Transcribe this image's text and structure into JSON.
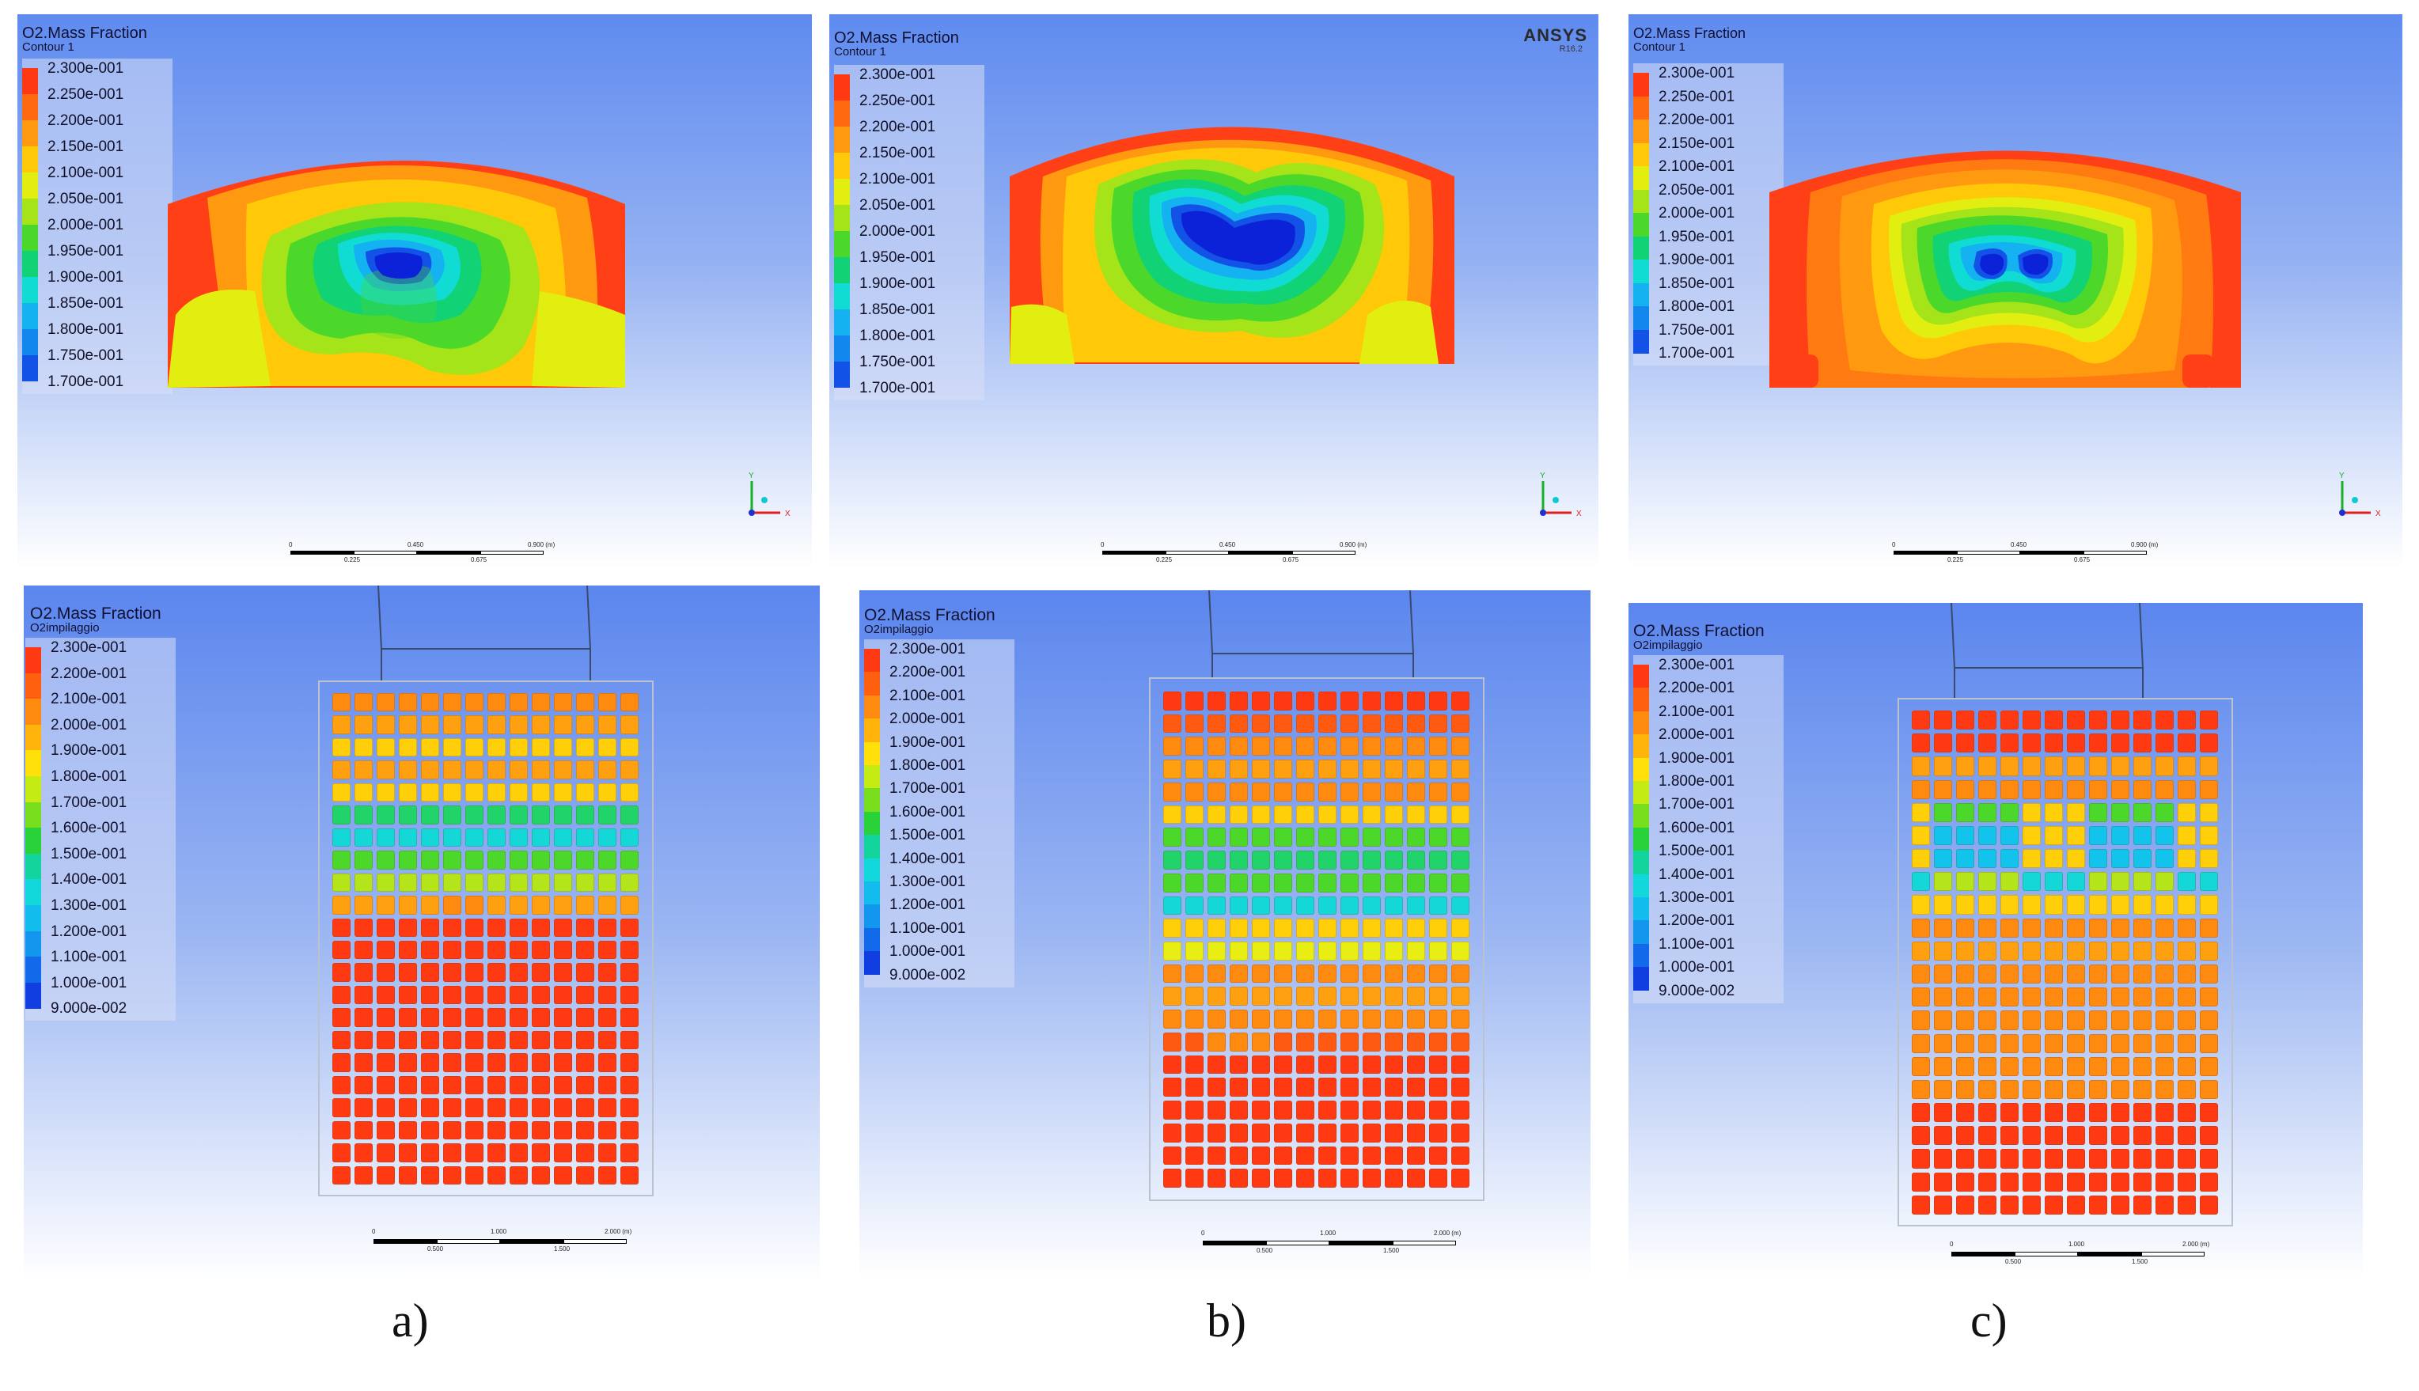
{
  "figure": {
    "top_row": [
      {
        "id": "a",
        "legend_title": "O2.Mass Fraction",
        "legend_subtitle": "Contour 1",
        "legend_values": [
          "2.300e-001",
          "2.250e-001",
          "2.200e-001",
          "2.150e-001",
          "2.100e-001",
          "2.050e-001",
          "2.000e-001",
          "1.950e-001",
          "1.900e-001",
          "1.850e-001",
          "1.800e-001",
          "1.750e-001",
          "1.700e-001"
        ],
        "scale_labels_top": [
          "0",
          "0.450",
          "0.900 (m)"
        ],
        "scale_labels_bottom": [
          "0.225",
          "0.675"
        ],
        "axis_labels": {
          "y": "Y",
          "x": "X"
        }
      },
      {
        "id": "b",
        "legend_title": "O2.Mass Fraction",
        "legend_subtitle": "Contour 1",
        "legend_values": [
          "2.300e-001",
          "2.250e-001",
          "2.200e-001",
          "2.150e-001",
          "2.100e-001",
          "2.050e-001",
          "2.000e-001",
          "1.950e-001",
          "1.900e-001",
          "1.850e-001",
          "1.800e-001",
          "1.750e-001",
          "1.700e-001"
        ],
        "scale_labels_top": [
          "0",
          "0.450",
          "0.900 (m)"
        ],
        "scale_labels_bottom": [
          "0.225",
          "0.675"
        ],
        "axis_labels": {
          "y": "Y",
          "x": "X"
        },
        "brand": "ANSYS",
        "brand_version": "R16.2"
      },
      {
        "id": "c",
        "legend_title": "O2.Mass Fraction",
        "legend_subtitle": "Contour 1",
        "legend_values": [
          "2.300e-001",
          "2.250e-001",
          "2.200e-001",
          "2.150e-001",
          "2.100e-001",
          "2.050e-001",
          "2.000e-001",
          "1.950e-001",
          "1.900e-001",
          "1.850e-001",
          "1.800e-001",
          "1.750e-001",
          "1.700e-001"
        ],
        "scale_labels_top": [
          "0",
          "0.450",
          "0.900 (m)"
        ],
        "scale_labels_bottom": [
          "0.225",
          "0.675"
        ],
        "axis_labels": {
          "y": "Y",
          "x": "X"
        }
      }
    ],
    "bottom_row": [
      {
        "id": "a",
        "legend_title": "O2.Mass Fraction",
        "legend_subtitle": "O2impilaggio",
        "legend_values": [
          "2.300e-001",
          "2.200e-001",
          "2.100e-001",
          "2.000e-001",
          "1.900e-001",
          "1.800e-001",
          "1.700e-001",
          "1.600e-001",
          "1.500e-001",
          "1.400e-001",
          "1.300e-001",
          "1.200e-001",
          "1.100e-001",
          "1.000e-001",
          "9.000e-002"
        ],
        "scale_labels_top": [
          "0",
          "1.000",
          "2.000 (m)"
        ],
        "scale_labels_bottom": [
          "0.500",
          "1.500"
        ]
      },
      {
        "id": "b",
        "legend_title": "O2.Mass Fraction",
        "legend_subtitle": "O2impilaggio",
        "legend_values": [
          "2.300e-001",
          "2.200e-001",
          "2.100e-001",
          "2.000e-001",
          "1.900e-001",
          "1.800e-001",
          "1.700e-001",
          "1.600e-001",
          "1.500e-001",
          "1.400e-001",
          "1.300e-001",
          "1.200e-001",
          "1.100e-001",
          "1.000e-001",
          "9.000e-002"
        ],
        "scale_labels_top": [
          "0",
          "1.000",
          "2.000 (m)"
        ],
        "scale_labels_bottom": [
          "0.500",
          "1.500"
        ]
      },
      {
        "id": "c",
        "legend_title": "O2.Mass Fraction",
        "legend_subtitle": "O2impilaggio",
        "legend_values": [
          "2.300e-001",
          "2.200e-001",
          "2.100e-001",
          "2.000e-001",
          "1.900e-001",
          "1.800e-001",
          "1.700e-001",
          "1.600e-001",
          "1.500e-001",
          "1.400e-001",
          "1.300e-001",
          "1.200e-001",
          "1.100e-001",
          "1.000e-001",
          "9.000e-002"
        ],
        "scale_labels_top": [
          "0",
          "1.000",
          "2.000 (m)"
        ],
        "scale_labels_bottom": [
          "0.500",
          "1.500"
        ]
      }
    ],
    "captions": [
      "a)",
      "b)",
      "c)"
    ],
    "colors": {
      "top_scale": [
        "#ff3a12",
        "#ff6a10",
        "#ff9a10",
        "#ffc808",
        "#e2ee10",
        "#a6e41a",
        "#4cd82a",
        "#12d276",
        "#10dcd4",
        "#14b2f0",
        "#1288ee",
        "#1252e6",
        "#0c22d8"
      ],
      "bottom_scale": [
        "#ff3a12",
        "#ff6010",
        "#ff8a10",
        "#ffb40c",
        "#ffe00a",
        "#c4ec14",
        "#78de1e",
        "#28d238",
        "#12d49c",
        "#12d8dc",
        "#12bced",
        "#1296ee",
        "#126aea",
        "#103ee0",
        "#0c1cd4"
      ]
    }
  }
}
